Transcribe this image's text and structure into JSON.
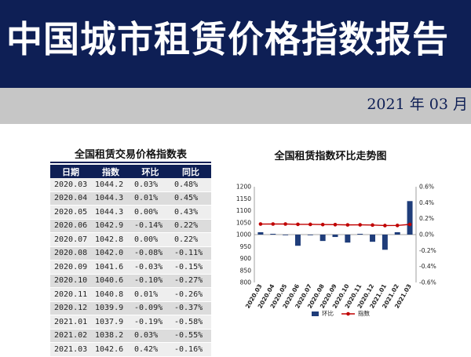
{
  "header": {
    "title": "中国城市租赁价格指数报告",
    "date": "2021 年 03 月"
  },
  "table": {
    "title": "全国租赁交易价格指数表",
    "headers": [
      "日期",
      "指数",
      "环比",
      "同比"
    ],
    "rows": [
      [
        "2020.03",
        "1044.2",
        "0.03%",
        "0.48%"
      ],
      [
        "2020.04",
        "1044.3",
        "0.01%",
        "0.45%"
      ],
      [
        "2020.05",
        "1044.3",
        "0.00%",
        "0.43%"
      ],
      [
        "2020.06",
        "1042.9",
        "-0.14%",
        "0.22%"
      ],
      [
        "2020.07",
        "1042.8",
        "0.00%",
        "0.22%"
      ],
      [
        "2020.08",
        "1042.0",
        "-0.08%",
        "-0.11%"
      ],
      [
        "2020.09",
        "1041.6",
        "-0.03%",
        "-0.15%"
      ],
      [
        "2020.10",
        "1040.6",
        "-0.10%",
        "-0.27%"
      ],
      [
        "2020.11",
        "1040.8",
        "0.01%",
        "-0.26%"
      ],
      [
        "2020.12",
        "1039.9",
        "-0.09%",
        "-0.37%"
      ],
      [
        "2021.01",
        "1037.9",
        "-0.19%",
        "-0.58%"
      ],
      [
        "2021.02",
        "1038.2",
        "0.03%",
        "-0.55%"
      ],
      [
        "2021.03",
        "1042.6",
        "0.42%",
        "-0.16%"
      ]
    ]
  },
  "chart_data": {
    "type": "bar",
    "title": "全国租赁指数环比走势图",
    "categories": [
      "2020.03",
      "2020.04",
      "2020.05",
      "2020.06",
      "2020.07",
      "2020.08",
      "2020.09",
      "2020.10",
      "2020.11",
      "2020.12",
      "2021.01",
      "2021.02",
      "2021.03"
    ],
    "series": [
      {
        "name": "环比",
        "type": "bar",
        "axis": "right",
        "color": "#1f3d7a",
        "values": [
          0.03,
          0.01,
          0.0,
          -0.14,
          0.0,
          -0.08,
          -0.03,
          -0.1,
          0.01,
          -0.09,
          -0.19,
          0.03,
          0.42
        ]
      },
      {
        "name": "指数",
        "type": "line",
        "axis": "left",
        "color": "#c00000",
        "values": [
          1044.2,
          1044.3,
          1044.3,
          1042.9,
          1042.8,
          1042.0,
          1041.6,
          1040.6,
          1040.8,
          1039.9,
          1037.9,
          1038.2,
          1042.6
        ]
      }
    ],
    "y_left": {
      "min": 800,
      "max": 1200,
      "ticks": [
        "1200",
        "1150",
        "1100",
        "1050",
        "1000",
        "950",
        "900",
        "850",
        "800"
      ]
    },
    "y_right": {
      "min": -0.6,
      "max": 0.6,
      "ticks": [
        "0.6%",
        "0.4%",
        "0.2%",
        "0.0%",
        "-0.2%",
        "-0.4%",
        "-0.6%"
      ]
    },
    "legend": {
      "position": "bottom",
      "items": [
        "环比",
        "指数"
      ]
    },
    "grid": false
  }
}
